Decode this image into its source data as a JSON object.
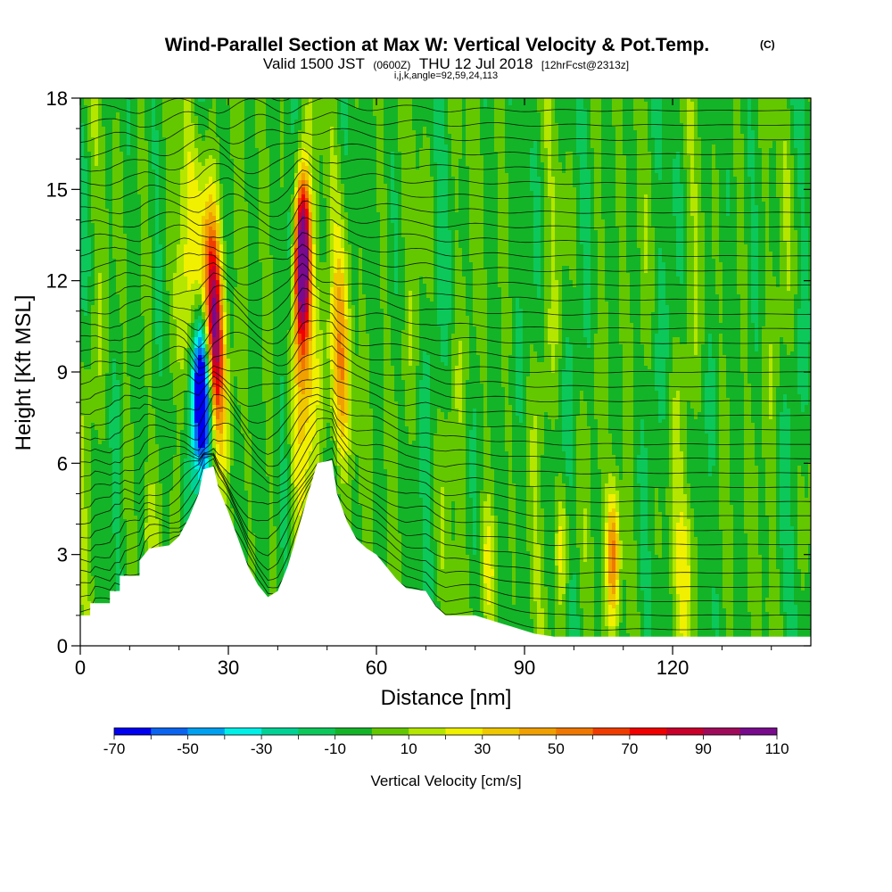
{
  "header": {
    "title_main": "Wind-Parallel Section at Max W: Vertical Velocity & Pot.Temp.",
    "title_tag": "(C)",
    "sub_a": "Valid 1500 JST",
    "sub_b": "(0600Z)",
    "sub_c": "THU 12 Jul 2018",
    "sub_d": "[12hrFcst@2313z]",
    "line3": "i,j,k,angle=92,59,24,113"
  },
  "chart_data": {
    "type": "heatmap",
    "xlabel": "Distance [nm]",
    "ylabel": "Height [Kft MSL]",
    "xlim": [
      0,
      148
    ],
    "ylim": [
      0,
      18
    ],
    "xticks": [
      0,
      30,
      60,
      90,
      120
    ],
    "xtick_labels": [
      "0",
      "30",
      "60",
      "90",
      "120"
    ],
    "yticks": [
      0,
      3,
      6,
      9,
      12,
      15,
      18
    ],
    "ytick_labels": [
      "0",
      "3",
      "6",
      "9",
      "12",
      "15",
      "18"
    ],
    "colorbar": {
      "label": "Vertical Velocity [cm/s]",
      "min": -70,
      "max": 110,
      "step": 10,
      "tick_labels": [
        "-70",
        "-50",
        "-30",
        "-10",
        "10",
        "30",
        "50",
        "70",
        "90",
        "110"
      ],
      "colors": [
        "#0000f0",
        "#0a64f0",
        "#00a0f0",
        "#00f0e8",
        "#00d296",
        "#0cc85a",
        "#14b428",
        "#64c800",
        "#b4e600",
        "#f0f000",
        "#f0c800",
        "#f0a000",
        "#f07800",
        "#f03c00",
        "#f00000",
        "#c8002a",
        "#a00a5a",
        "#780a8c"
      ]
    },
    "terrain": [
      [
        0,
        1.0
      ],
      [
        2,
        1.0
      ],
      [
        2,
        1.4
      ],
      [
        6,
        1.4
      ],
      [
        6,
        1.8
      ],
      [
        8,
        1.8
      ],
      [
        8,
        2.3
      ],
      [
        12,
        2.3
      ],
      [
        12,
        2.8
      ],
      [
        14,
        3.2
      ],
      [
        18,
        3.3
      ],
      [
        20,
        3.6
      ],
      [
        22,
        4.2
      ],
      [
        24,
        5.0
      ],
      [
        25,
        5.8
      ],
      [
        27,
        5.9
      ],
      [
        28,
        5.2
      ],
      [
        30,
        4.4
      ],
      [
        32,
        3.5
      ],
      [
        34,
        2.6
      ],
      [
        36,
        2.0
      ],
      [
        38,
        1.6
      ],
      [
        40,
        1.8
      ],
      [
        42,
        2.6
      ],
      [
        44,
        3.7
      ],
      [
        46,
        4.9
      ],
      [
        48,
        6.0
      ],
      [
        51,
        6.1
      ],
      [
        52,
        5.0
      ],
      [
        54,
        4.1
      ],
      [
        56,
        3.5
      ],
      [
        58,
        3.2
      ],
      [
        60,
        3.0
      ],
      [
        62,
        2.6
      ],
      [
        64,
        2.2
      ],
      [
        66,
        1.9
      ],
      [
        70,
        1.8
      ],
      [
        72,
        1.3
      ],
      [
        74,
        1.0
      ],
      [
        80,
        1.0
      ],
      [
        84,
        0.8
      ],
      [
        88,
        0.6
      ],
      [
        92,
        0.4
      ],
      [
        96,
        0.3
      ],
      [
        100,
        0.3
      ],
      [
        148,
        0.3
      ],
      [
        148,
        0
      ]
    ],
    "features": [
      {
        "kind": "downdraft",
        "x": 24.5,
        "y": 8.2,
        "value": -70
      },
      {
        "kind": "updraft",
        "x": 27.0,
        "y": 10.0,
        "value": 80
      },
      {
        "kind": "updraft",
        "x": 45.0,
        "y": 13.0,
        "value": 90
      },
      {
        "kind": "updraft",
        "x": 53.0,
        "y": 8.2,
        "value": 40
      },
      {
        "kind": "updraft",
        "x": 108.0,
        "y": 3.2,
        "value": 50
      }
    ]
  }
}
